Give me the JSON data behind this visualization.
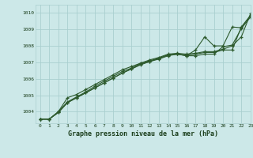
{
  "title": "Graphe pression niveau de la mer (hPa)",
  "bg_color": "#cce8e8",
  "grid_color": "#aacfcf",
  "line_color": "#2d5a2d",
  "tick_color": "#1a3d1a",
  "xlim": [
    -0.5,
    23
  ],
  "ylim": [
    1003.3,
    1010.5
  ],
  "yticks": [
    1004,
    1005,
    1006,
    1007,
    1008,
    1009,
    1010
  ],
  "xticks": [
    0,
    1,
    2,
    3,
    4,
    5,
    6,
    7,
    8,
    9,
    10,
    11,
    12,
    13,
    14,
    15,
    16,
    17,
    18,
    19,
    20,
    21,
    22,
    23
  ],
  "series": [
    [
      1003.55,
      1003.55,
      1004.0,
      1004.6,
      1004.9,
      1005.2,
      1005.55,
      1005.85,
      1006.15,
      1006.45,
      1006.65,
      1006.95,
      1007.1,
      1007.25,
      1007.45,
      1007.5,
      1007.45,
      1007.5,
      1007.6,
      1007.6,
      1007.75,
      1007.75,
      1009.15,
      1009.85
    ],
    [
      1003.55,
      1003.55,
      1004.0,
      1004.85,
      1005.05,
      1005.35,
      1005.65,
      1005.95,
      1006.25,
      1006.55,
      1006.75,
      1006.95,
      1007.15,
      1007.3,
      1007.5,
      1007.55,
      1007.5,
      1007.55,
      1007.65,
      1007.65,
      1007.8,
      1008.0,
      1008.55,
      1009.95
    ],
    [
      1003.55,
      1003.55,
      1003.95,
      1004.55,
      1004.85,
      1005.15,
      1005.45,
      1005.75,
      1006.05,
      1006.35,
      1006.6,
      1006.9,
      1007.05,
      1007.25,
      1007.45,
      1007.5,
      1007.4,
      1007.75,
      1008.55,
      1008.0,
      1008.0,
      1009.15,
      1009.1,
      1009.85
    ],
    [
      1003.55,
      1003.55,
      1003.95,
      1004.55,
      1004.85,
      1005.15,
      1005.45,
      1005.75,
      1006.05,
      1006.35,
      1006.6,
      1006.85,
      1007.05,
      1007.2,
      1007.4,
      1007.5,
      1007.4,
      1007.4,
      1007.5,
      1007.5,
      1007.95,
      1008.05,
      1009.05,
      1009.75
    ]
  ]
}
